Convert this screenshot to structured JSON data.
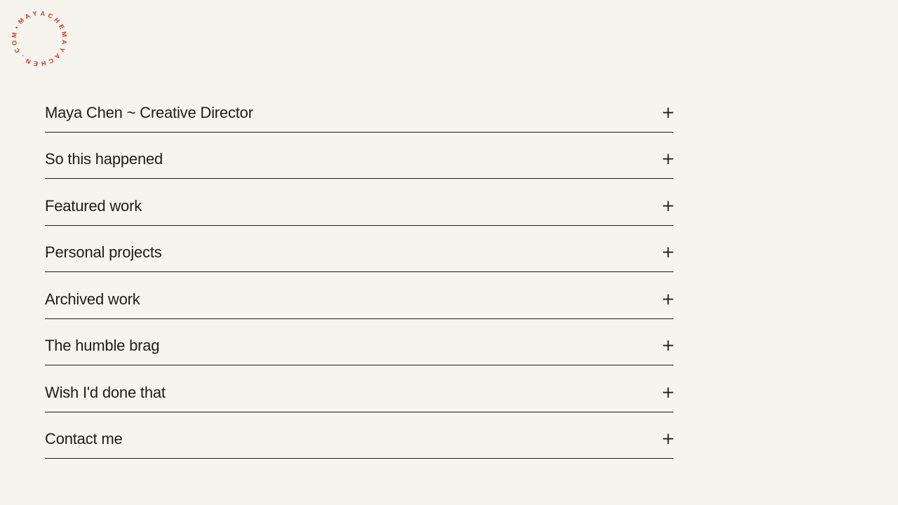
{
  "page": {
    "background_color": "#f6f4ec",
    "ink_color": "#1d1c18"
  },
  "logo": {
    "circular_text": "•MAYACHEMAYACHEN.COM",
    "color": "#c33a2e"
  },
  "accordion": {
    "toggle_symbol": "+",
    "items": [
      {
        "label": "Maya Chen ~ Creative Director"
      },
      {
        "label": "So this happened"
      },
      {
        "label": "Featured work"
      },
      {
        "label": "Personal projects"
      },
      {
        "label": "Archived work"
      },
      {
        "label": "The humble brag"
      },
      {
        "label": "Wish I'd done that"
      },
      {
        "label": "Contact me"
      }
    ]
  }
}
